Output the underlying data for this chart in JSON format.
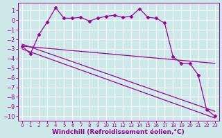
{
  "background_color": "#cce8e8",
  "grid_color": "#aacccc",
  "line_color": "#990099",
  "xlabel": "Windchill (Refroidissement éolien,°C)",
  "xlim": [
    -0.5,
    23.5
  ],
  "ylim": [
    -10.5,
    1.8
  ],
  "yticks": [
    1,
    0,
    -1,
    -2,
    -3,
    -4,
    -5,
    -6,
    -7,
    -8,
    -9,
    -10
  ],
  "xticks": [
    0,
    1,
    2,
    3,
    4,
    5,
    6,
    7,
    8,
    9,
    10,
    11,
    12,
    13,
    14,
    15,
    16,
    17,
    18,
    19,
    20,
    21,
    22,
    23
  ],
  "series1_x": [
    0,
    1,
    2,
    3,
    4,
    5,
    6,
    7,
    8,
    9,
    10,
    11,
    12,
    13,
    14,
    15,
    16,
    17,
    18,
    19,
    20,
    21,
    22,
    23
  ],
  "series1_y": [
    -2.7,
    -3.5,
    -1.5,
    -0.2,
    1.3,
    0.2,
    0.2,
    0.3,
    -0.1,
    0.2,
    0.4,
    0.5,
    0.3,
    0.4,
    1.2,
    0.3,
    0.2,
    -0.3,
    -3.8,
    -4.5,
    -4.5,
    -5.7,
    -9.3,
    -10.0
  ],
  "series2_x": [
    0,
    23
  ],
  "series2_y": [
    -2.7,
    -4.5
  ],
  "series3_x": [
    0,
    23
  ],
  "series3_y": [
    -2.5,
    -9.5
  ],
  "series4_x": [
    0,
    23
  ],
  "series4_y": [
    -3.0,
    -10.2
  ],
  "font_size_xlabel": 6.5,
  "font_size_ticks_x": 5,
  "font_size_ticks_y": 6,
  "tick_color": "#990099",
  "xlabel_color": "#990099"
}
